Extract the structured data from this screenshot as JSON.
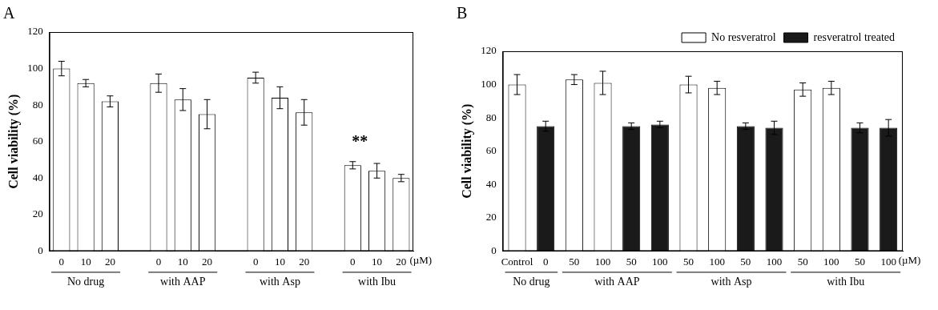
{
  "chart_data": [
    {
      "type": "bar",
      "title": "A",
      "y_label": "Cell viability (%)",
      "x_label": "(µM)",
      "categories": [
        "0",
        "10",
        "20",
        "0",
        "10",
        "20",
        "0",
        "10",
        "20",
        "0",
        "10",
        "20"
      ],
      "groups": [
        "No drug",
        "No drug",
        "No drug",
        "with AAP",
        "with AAP",
        "with AAP",
        "with Asp",
        "with Asp",
        "with Asp",
        "with Ibu",
        "with Ibu",
        "with Ibu"
      ],
      "values": [
        100,
        92,
        82,
        92,
        83,
        75,
        95,
        84,
        76,
        47,
        44,
        40
      ],
      "errors": [
        4,
        2,
        3,
        5,
        6,
        8,
        3,
        6,
        7,
        2,
        4,
        2
      ],
      "color": "#ffffff",
      "annotations": [
        {
          "text": "**",
          "group": "with Ibu"
        }
      ],
      "ylim": [
        0,
        120
      ],
      "yticks": [
        0,
        20,
        40,
        60,
        80,
        100,
        120
      ],
      "grid": false
    },
    {
      "type": "bar",
      "title": "B",
      "y_label": "Cell viability (%)",
      "x_label": "(µM)",
      "categories": [
        "Control",
        "0",
        "50",
        "100",
        "50",
        "100",
        "50",
        "100",
        "50",
        "100",
        "50",
        "100",
        "50",
        "100"
      ],
      "groups": [
        "No drug",
        "No drug",
        "with AAP",
        "with AAP",
        "with AAP",
        "with AAP",
        "with Asp",
        "with Asp",
        "with Asp",
        "with Asp",
        "with Ibu",
        "with Ibu",
        "with Ibu",
        "with Ibu"
      ],
      "series": [
        {
          "name": "No resveratrol",
          "color": "#ffffff",
          "values": [
            100,
            null,
            103,
            101,
            null,
            null,
            100,
            98,
            null,
            null,
            97,
            98,
            null,
            null
          ],
          "errors": [
            6,
            null,
            3,
            7,
            null,
            null,
            5,
            4,
            null,
            null,
            4,
            4,
            null,
            null
          ]
        },
        {
          "name": "resveratrol treated",
          "color": "#1a1a1a",
          "values": [
            null,
            75,
            null,
            null,
            75,
            76,
            null,
            null,
            75,
            74,
            null,
            null,
            74,
            74
          ],
          "errors": [
            null,
            3,
            null,
            null,
            2,
            2,
            null,
            null,
            2,
            4,
            null,
            null,
            3,
            5
          ]
        }
      ],
      "ylim": [
        0,
        120
      ],
      "yticks": [
        0,
        20,
        40,
        60,
        80,
        100,
        120
      ],
      "grid": false,
      "legend": "top right"
    }
  ]
}
